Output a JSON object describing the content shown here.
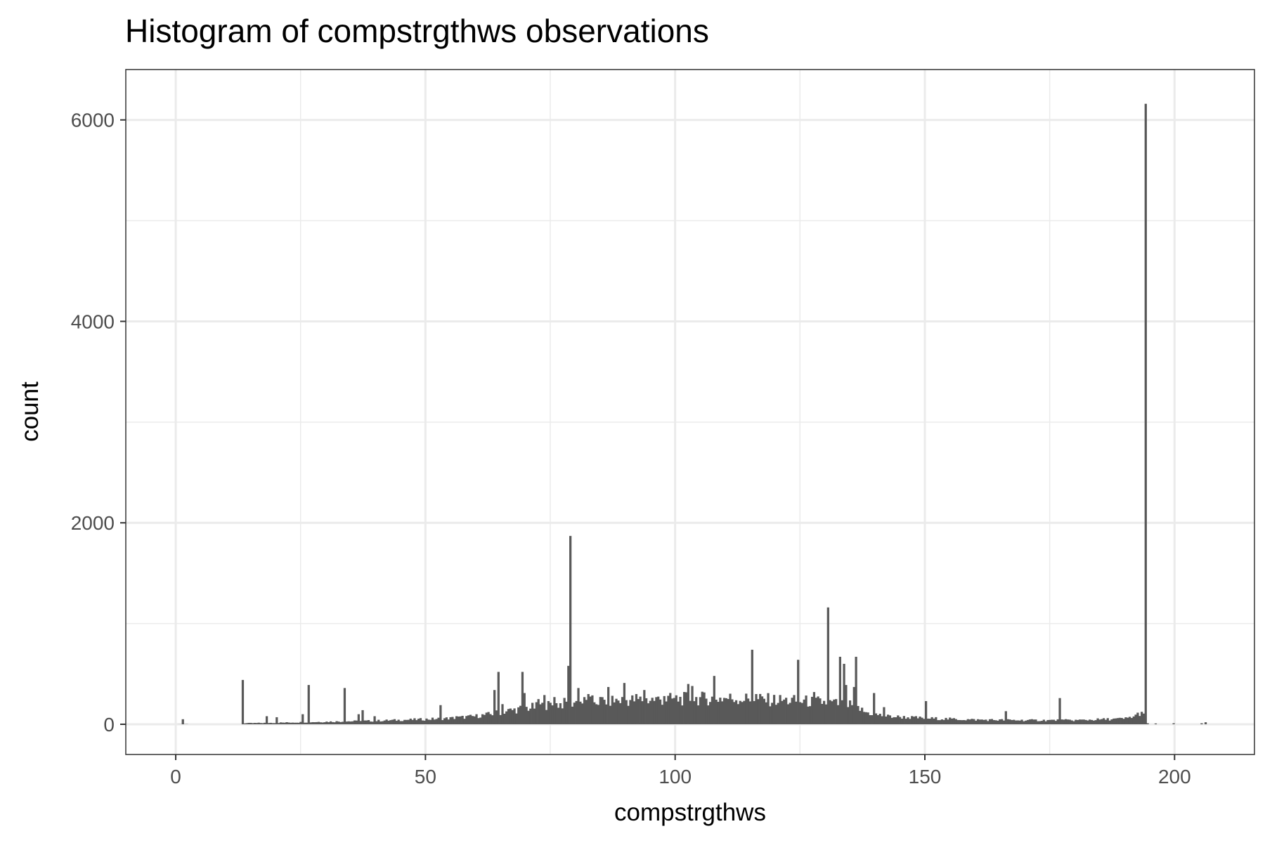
{
  "chart_data": {
    "type": "bar",
    "title": "Histogram of compstrgthws observations",
    "xlabel": "compstrgthws",
    "ylabel": "count",
    "xlim": [
      -10,
      216
    ],
    "ylim": [
      -300,
      6500
    ],
    "x_ticks": [
      0,
      50,
      100,
      150,
      200
    ],
    "x_tick_labels": [
      "0",
      "50",
      "100",
      "150",
      "200"
    ],
    "y_ticks": [
      0,
      2000,
      4000,
      6000
    ],
    "y_tick_labels": [
      "0",
      "2000",
      "4000",
      "6000"
    ],
    "grid": true,
    "legend": "none",
    "bin_width": 0.4,
    "base": [
      [
        0,
        0
      ],
      [
        13,
        10
      ],
      [
        20,
        15
      ],
      [
        30,
        25
      ],
      [
        40,
        35
      ],
      [
        50,
        50
      ],
      [
        55,
        60
      ],
      [
        60,
        80
      ],
      [
        63,
        100
      ],
      [
        66,
        130
      ],
      [
        70,
        160
      ],
      [
        75,
        190
      ],
      [
        80,
        220
      ],
      [
        90,
        240
      ],
      [
        100,
        250
      ],
      [
        110,
        260
      ],
      [
        120,
        240
      ],
      [
        130,
        220
      ],
      [
        136,
        180
      ],
      [
        138,
        120
      ],
      [
        142,
        80
      ],
      [
        150,
        60
      ],
      [
        160,
        45
      ],
      [
        170,
        40
      ],
      [
        180,
        40
      ],
      [
        190,
        55
      ],
      [
        192,
        80
      ],
      [
        193.6,
        130
      ],
      [
        194.2,
        0
      ],
      [
        216,
        0
      ]
    ],
    "spikes": [
      [
        1,
        50
      ],
      [
        13.2,
        440
      ],
      [
        17.8,
        80
      ],
      [
        20.2,
        70
      ],
      [
        25,
        100
      ],
      [
        26.2,
        390
      ],
      [
        33.6,
        360
      ],
      [
        36.2,
        100
      ],
      [
        37.4,
        140
      ],
      [
        39.8,
        80
      ],
      [
        52.6,
        190
      ],
      [
        56,
        80
      ],
      [
        63.6,
        340
      ],
      [
        64.4,
        520
      ],
      [
        65,
        200
      ],
      [
        69,
        520
      ],
      [
        69.8,
        310
      ],
      [
        72.6,
        250
      ],
      [
        73.6,
        290
      ],
      [
        75.6,
        270
      ],
      [
        78.4,
        580
      ],
      [
        78.8,
        1870
      ],
      [
        80.4,
        360
      ],
      [
        82.2,
        300
      ],
      [
        86.6,
        370
      ],
      [
        89.4,
        410
      ],
      [
        92,
        300
      ],
      [
        93.6,
        340
      ],
      [
        97.6,
        280
      ],
      [
        102.4,
        400
      ],
      [
        103,
        380
      ],
      [
        107.6,
        480
      ],
      [
        115,
        740
      ],
      [
        116,
        300
      ],
      [
        124.6,
        640
      ],
      [
        127.6,
        320
      ],
      [
        130.6,
        1160
      ],
      [
        132.8,
        670
      ],
      [
        133.6,
        600
      ],
      [
        134,
        390
      ],
      [
        135.4,
        370
      ],
      [
        135.8,
        670
      ],
      [
        139.6,
        310
      ],
      [
        141.4,
        170
      ],
      [
        150.2,
        230
      ],
      [
        166.2,
        130
      ],
      [
        176.8,
        260
      ],
      [
        194,
        6160
      ],
      [
        194.6,
        10
      ],
      [
        196,
        8
      ],
      [
        199.6,
        10
      ],
      [
        205,
        10
      ],
      [
        206.2,
        20
      ]
    ]
  }
}
